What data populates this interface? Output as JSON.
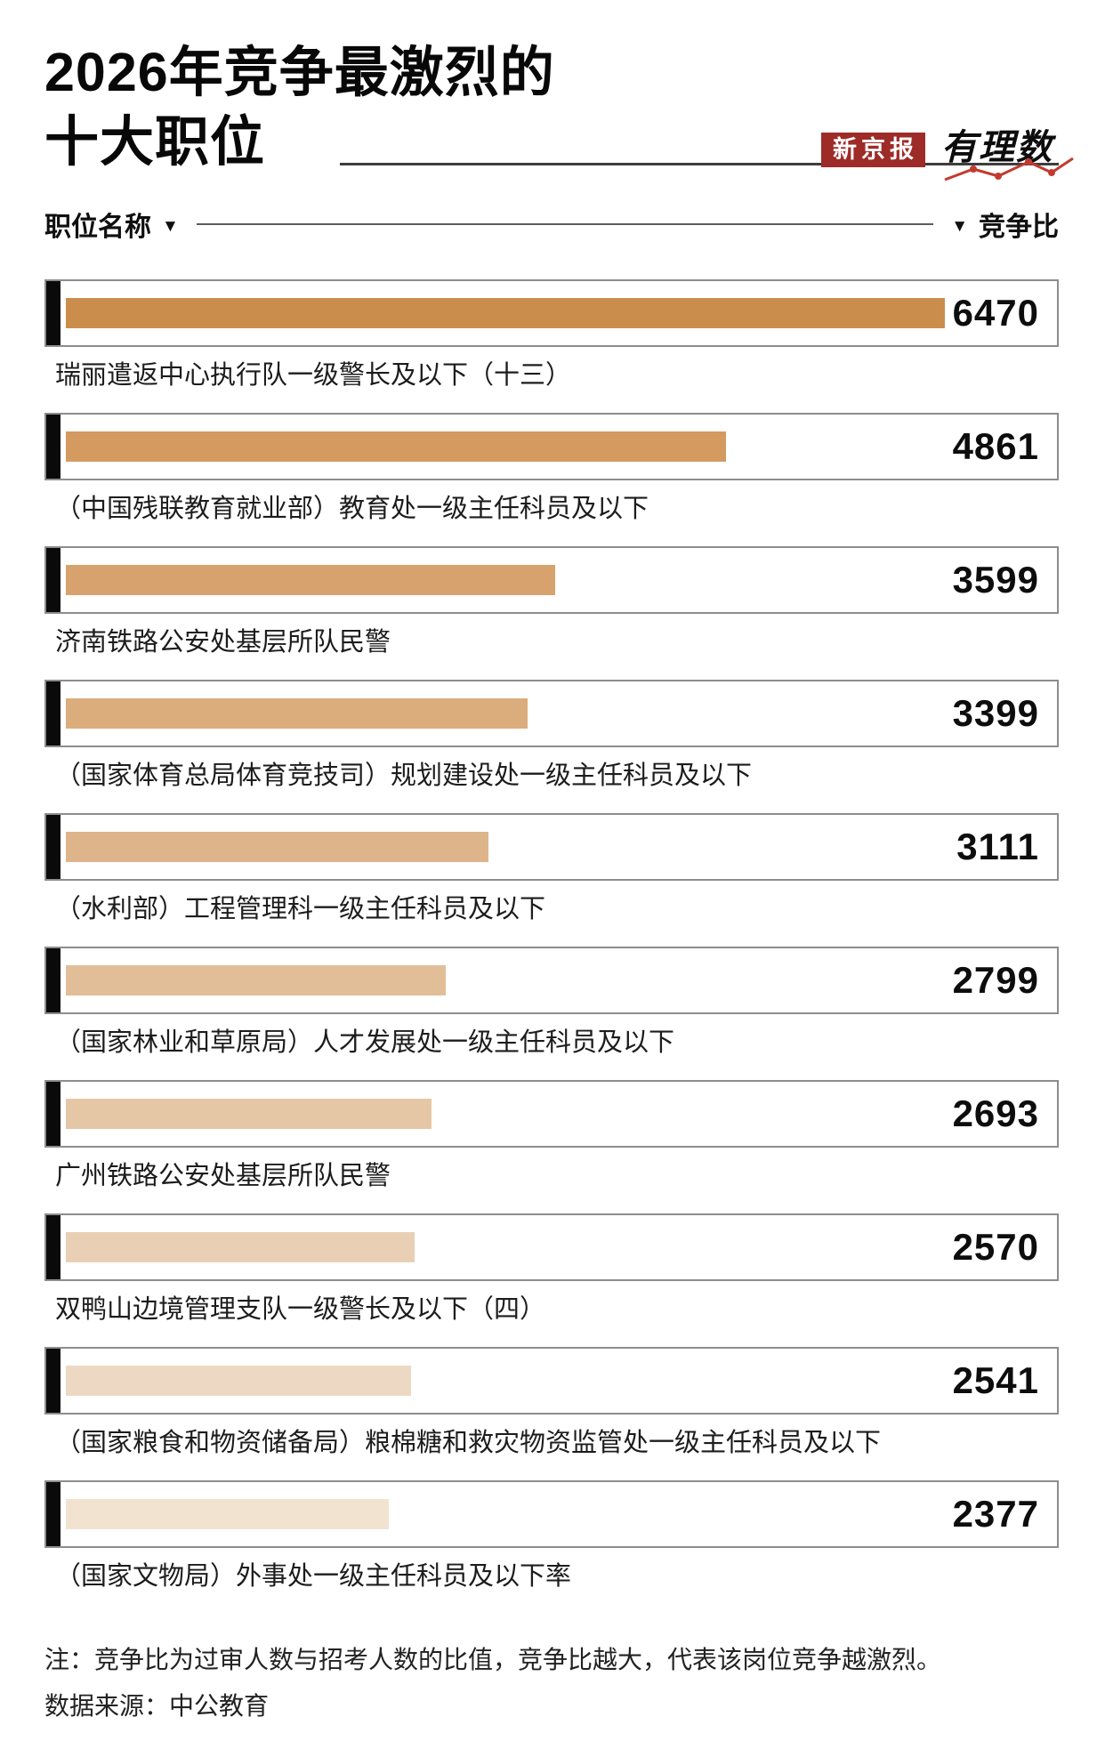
{
  "page": {
    "title_line1": "2026年竞争最激烈的",
    "title_line2": "十大职位",
    "brand": {
      "newspaper": "新京报",
      "column": "有理数"
    },
    "col_header_left": "职位名称",
    "col_header_right": "竞争比",
    "icons": {
      "sort_down": "▼"
    },
    "notes": {
      "line1": "注：竞争比为过审人数与招考人数的比值，竞争比越大，代表该岗位竞争越激烈。",
      "line2": "数据来源：中公教育"
    },
    "colors": {
      "brand_red": "#9d2b28",
      "chart_line_red": "#c23a2f",
      "marker_black": "#0a0a0a",
      "box_border_gray": "#8d8d8d"
    }
  },
  "chart_data": {
    "type": "bar",
    "orientation": "horizontal",
    "title": "2026年竞争最激烈的十大职位",
    "xlabel": "竞争比",
    "ylabel": "职位名称",
    "source": "数据来源：中公教育",
    "max_value": 6470,
    "categories": [
      "瑞丽遣返中心执行队一级警长及以下（十三）",
      "（中国残联教育就业部）教育处一级主任科员及以下",
      "济南铁路公安处基层所队民警",
      "（国家体育总局体育竞技司）规划建设处一级主任科员及以下",
      "（水利部）工程管理科一级主任科员及以下",
      "（国家林业和草原局）人才发展处一级主任科员及以下",
      "广州铁路公安处基层所队民警",
      "双鸭山边境管理支队一级警长及以下（四）",
      "（国家粮食和物资储备局）粮棉糖和救灾物资监管处一级主任科员及以下",
      "（国家文物局）外事处一级主任科员及以下率"
    ],
    "values": [
      6470,
      4861,
      3599,
      3399,
      3111,
      2799,
      2693,
      2570,
      2541,
      2377
    ],
    "bar_colors": [
      "#cb8d4b",
      "#d49a60",
      "#d7a26d",
      "#dbac7c",
      "#deb58a",
      "#e2be98",
      "#e5c7a6",
      "#e9d0b4",
      "#edd9c3",
      "#f2e3d1"
    ]
  }
}
